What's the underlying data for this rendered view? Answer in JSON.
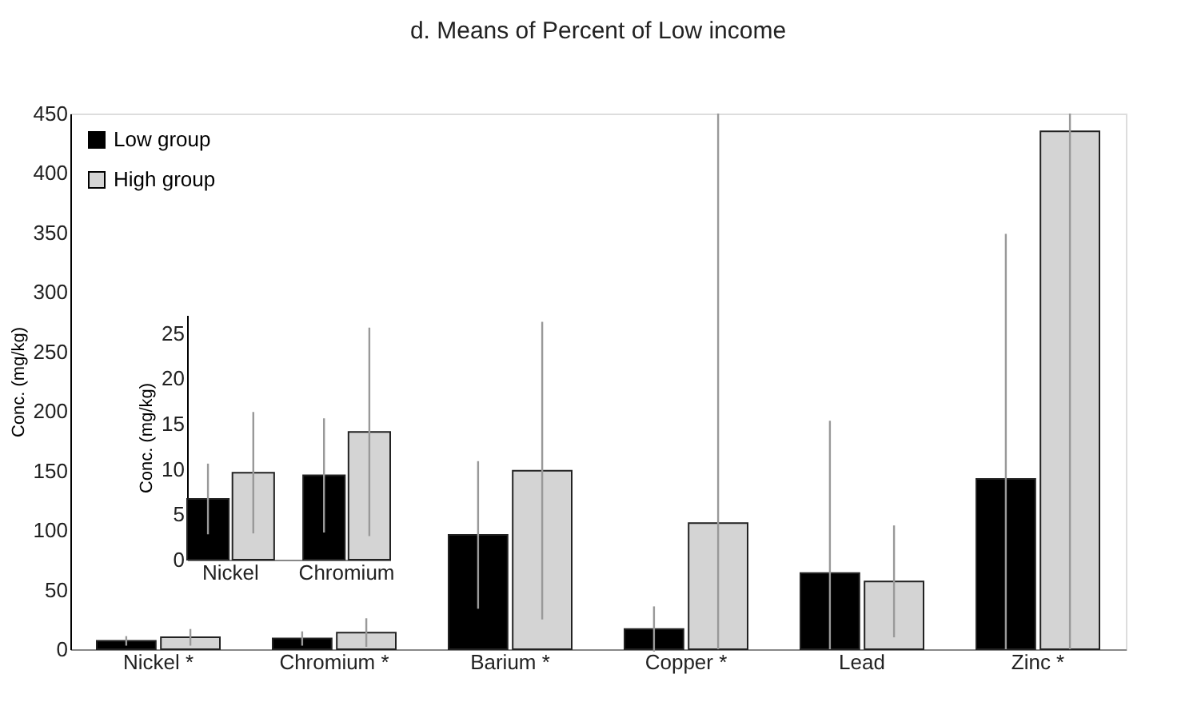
{
  "chart_data": [
    {
      "type": "bar",
      "title": "d. Means of Percent of Low income",
      "ylabel": "Conc. (mg/kg)",
      "categories": [
        "Nickel *",
        "Chromium *",
        "Barium *",
        "Copper *",
        "Lead",
        "Zinc *"
      ],
      "series": [
        {
          "name": "Low group",
          "color": "#000000",
          "values": [
            7,
            9,
            96,
            17,
            64,
            143
          ],
          "errors": [
            4,
            6,
            62,
            19,
            [
              0,
              192
            ],
            [
              0,
              349
            ]
          ]
        },
        {
          "name": "High group",
          "color": "#d4d4d4",
          "values": [
            10,
            14,
            150,
            106,
            57,
            435
          ],
          "errors": [
            7,
            12,
            125,
            [
              0,
              450
            ],
            47,
            [
              0,
              450
            ]
          ]
        }
      ],
      "ylim": [
        0,
        450
      ],
      "yticks": [
        0,
        50,
        100,
        150,
        200,
        250,
        300,
        350,
        400,
        450
      ],
      "legend": "top left",
      "grid": false
    },
    {
      "type": "bar",
      "ylabel": "Conc. (mg/kg)",
      "categories": [
        "Nickel",
        "Chromium"
      ],
      "series": [
        {
          "color": "#000000",
          "values": [
            6.7,
            9.3
          ],
          "errors": [
            3.9,
            6.3
          ]
        },
        {
          "color": "#d4d4d4",
          "values": [
            9.6,
            14.1
          ],
          "errors": [
            6.7,
            11.5
          ]
        }
      ],
      "ylim": [
        0,
        27
      ],
      "yticks": [
        0,
        5,
        10,
        15,
        20,
        25
      ],
      "grid": false
    }
  ]
}
